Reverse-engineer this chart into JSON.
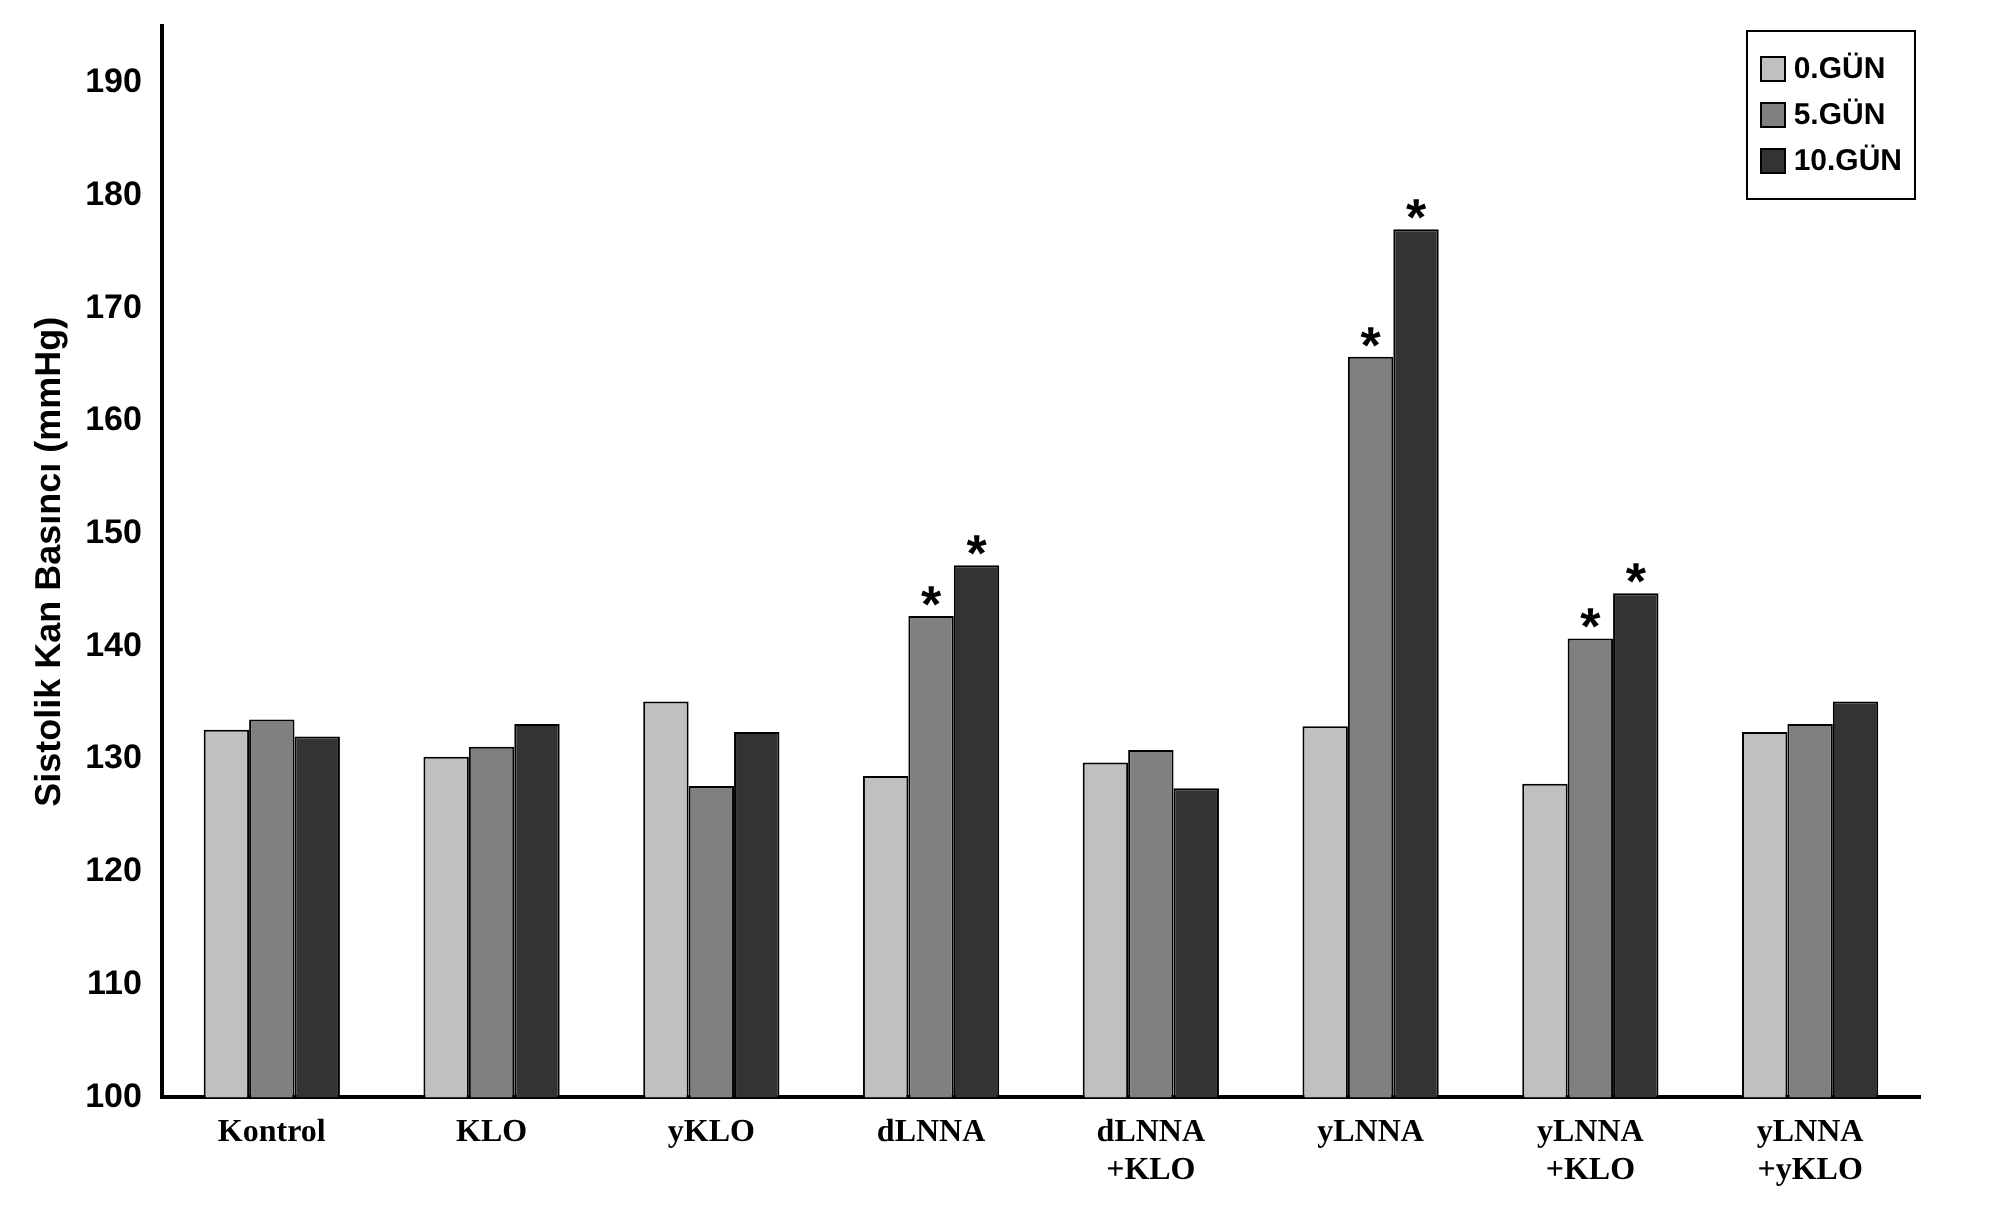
{
  "chart_data": {
    "type": "bar",
    "ylabel": "Sistolik Kan Basıncı (mmHg)",
    "categories": [
      "Kontrol",
      "KLO",
      "yKLO",
      "dLNNA",
      "dLNNA +KLO",
      "yLNNA",
      "yLNNA +KLO",
      "yLNNA +yKLO"
    ],
    "series": [
      {
        "name": "0.GÜN",
        "color": "#c0c0c0",
        "values": [
          132.6,
          130.2,
          135.1,
          128.5,
          129.7,
          132.9,
          127.8,
          132.4
        ]
      },
      {
        "name": "5.GÜN",
        "color": "#808080",
        "values": [
          133.5,
          131.1,
          127.6,
          142.7,
          130.8,
          165.7,
          140.7,
          133.1
        ],
        "value_labels": [
          null,
          null,
          null,
          "*",
          null,
          "*",
          "*",
          null
        ]
      },
      {
        "name": "10.GÜN",
        "color": "#333333",
        "values": [
          132.0,
          133.1,
          132.4,
          147.2,
          127.4,
          177.0,
          144.7,
          135.1
        ],
        "value_labels": [
          null,
          null,
          null,
          "*",
          null,
          "*",
          "*",
          null
        ]
      }
    ],
    "ylim": [
      100,
      195
    ],
    "yticks": [
      100,
      110,
      120,
      130,
      140,
      150,
      160,
      170,
      180,
      190
    ],
    "grid": false,
    "legend": "top right"
  }
}
